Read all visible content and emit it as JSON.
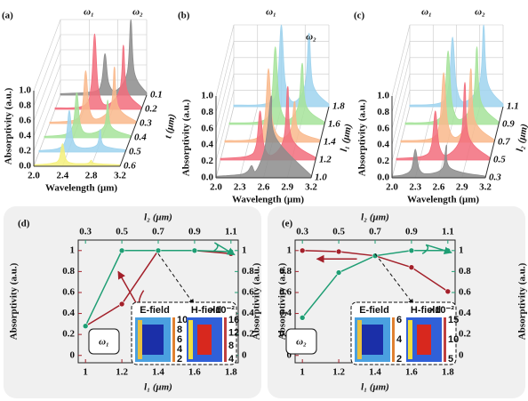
{
  "chart_data": [
    {
      "type": "waterfall",
      "label": "(a)",
      "xlabel": "Wavelength (μm)",
      "ylabel": "Absorptivity (a.u.)",
      "zlabel": "t (μm)",
      "annotations": [
        "ω₁",
        "ω₂"
      ],
      "xlim": [
        2.0,
        3.2
      ],
      "xticks": [
        {
          "value": 2,
          "label": "2.0"
        },
        2.4,
        2.8,
        3.2
      ],
      "ylim": [
        0,
        1
      ],
      "yticks": [
        {
          "value": 0,
          "label": "0.0"
        },
        0.2,
        0.4,
        0.6,
        0.8,
        {
          "value": 1,
          "label": "1.0"
        }
      ],
      "series": [
        {
          "name": "0.1",
          "color": "#8c8c8c",
          "x": [
            2.0,
            2.47,
            2.57,
            2.62,
            2.67,
            2.77,
            2.93,
            2.98,
            3.03,
            3.2
          ],
          "values": [
            0.02,
            0.05,
            0.17,
            0.55,
            0.17,
            0.06,
            0.3,
            1.0,
            0.3,
            0.03
          ]
        },
        {
          "name": "0.2",
          "color": "#f26d7d",
          "x": [
            2.0,
            2.4,
            2.5,
            2.55,
            2.6,
            2.7,
            2.9,
            2.95,
            3.0,
            3.2
          ],
          "values": [
            0.02,
            0.05,
            0.3,
            1.0,
            0.3,
            0.06,
            0.26,
            0.85,
            0.26,
            0.03
          ]
        },
        {
          "name": "0.3",
          "color": "#f9b98c",
          "x": [
            2.0,
            2.35,
            2.45,
            2.5,
            2.55,
            2.65,
            2.85,
            2.9,
            2.95,
            3.2
          ],
          "values": [
            0.02,
            0.05,
            0.21,
            0.7,
            0.21,
            0.06,
            0.23,
            0.75,
            0.23,
            0.03
          ]
        },
        {
          "name": "0.4",
          "color": "#a6e39a",
          "x": [
            2.0,
            2.3,
            2.4,
            2.45,
            2.5,
            2.6,
            2.83,
            2.88,
            2.93,
            3.2
          ],
          "values": [
            0.02,
            0.05,
            0.18,
            0.6,
            0.18,
            0.06,
            0.15,
            0.5,
            0.15,
            0.03
          ]
        },
        {
          "name": "0.5",
          "color": "#9fd3ee",
          "x": [
            2.0,
            2.27,
            2.37,
            2.42,
            2.47,
            2.57,
            2.8,
            2.85,
            2.9,
            3.2
          ],
          "values": [
            0.02,
            0.05,
            0.17,
            0.55,
            0.17,
            0.06,
            0.09,
            0.3,
            0.09,
            0.03
          ]
        },
        {
          "name": "0.6",
          "color": "#f5f07a",
          "x": [
            2.0,
            2.25,
            2.35,
            2.4,
            2.45,
            2.55,
            2.75,
            2.8,
            2.85,
            3.2
          ],
          "values": [
            0.02,
            0.04,
            0.09,
            0.3,
            0.09,
            0.04,
            0.04,
            0.08,
            0.04,
            0.02
          ]
        }
      ]
    },
    {
      "type": "waterfall",
      "label": "(b)",
      "xlabel": "Wavelength (μm)",
      "ylabel": "Absorptivity (a.u.)",
      "zlabel": "l₁ (μm)",
      "annotations": [
        "ω₁",
        "ω₂"
      ],
      "xlim": [
        2.0,
        3.2
      ],
      "xticks": [
        {
          "value": 2,
          "label": "2.0"
        },
        2.3,
        2.6,
        2.9,
        3.2
      ],
      "ylim": [
        0,
        1
      ],
      "yticks": [
        {
          "value": 0,
          "label": "0.0"
        },
        0.2,
        0.4,
        0.6,
        0.8,
        {
          "value": 1,
          "label": "1.0"
        }
      ],
      "series": [
        {
          "name": "1.8",
          "color": "#9fd3ee",
          "x": [
            2.0,
            2.45,
            2.55,
            2.6,
            2.65,
            2.75,
            2.9,
            2.95,
            3.0,
            3.2
          ],
          "values": [
            0.02,
            0.05,
            0.3,
            1.0,
            0.3,
            0.06,
            0.27,
            0.9,
            0.27,
            0.03
          ]
        },
        {
          "name": "1.6",
          "color": "#a6e39a",
          "x": [
            2.0,
            2.43,
            2.53,
            2.58,
            2.63,
            2.73,
            2.87,
            2.92,
            2.97,
            3.2
          ],
          "values": [
            0.02,
            0.05,
            0.29,
            0.95,
            0.29,
            0.06,
            0.23,
            0.75,
            0.23,
            0.03
          ]
        },
        {
          "name": "1.4",
          "color": "#f9b98c",
          "x": [
            2.0,
            2.4,
            2.5,
            2.55,
            2.6,
            2.7,
            2.83,
            2.88,
            2.93,
            3.2
          ],
          "values": [
            0.02,
            0.05,
            0.27,
            0.9,
            0.27,
            0.06,
            0.15,
            0.5,
            0.15,
            0.03
          ]
        },
        {
          "name": "1.2",
          "color": "#f26d7d",
          "x": [
            2.0,
            2.35,
            2.45,
            2.5,
            2.55,
            2.65,
            2.8,
            2.85,
            2.9,
            3.2
          ],
          "values": [
            0.02,
            0.05,
            0.18,
            0.6,
            0.18,
            0.06,
            0.27,
            0.9,
            0.27,
            0.03
          ]
        },
        {
          "name": "1.0",
          "color": "#8c8c8c",
          "x": [
            2.0,
            2.3,
            2.4,
            2.45,
            2.5,
            2.6,
            2.65,
            2.7,
            2.75,
            3.2
          ],
          "values": [
            0.02,
            0.04,
            0.08,
            0.15,
            0.08,
            0.3,
            0.6,
            1.0,
            0.5,
            0.03
          ]
        }
      ]
    },
    {
      "type": "waterfall",
      "label": "(c)",
      "xlabel": "Wavelength (μm)",
      "ylabel": "Absorptivity (a.u.)",
      "zlabel": "l₂ (μm)",
      "annotations": [
        "ω₁",
        "ω₂"
      ],
      "xlim": [
        2.0,
        3.2
      ],
      "xticks": [
        {
          "value": 2,
          "label": "2.0"
        },
        2.3,
        2.6,
        2.9,
        3.2
      ],
      "ylim": [
        0,
        1
      ],
      "yticks": [
        {
          "value": 0,
          "label": "0.0"
        },
        0.2,
        0.4,
        0.6,
        0.8,
        {
          "value": 1,
          "label": "1.0"
        }
      ],
      "series": [
        {
          "name": "1.1",
          "color": "#9fd3ee",
          "x": [
            2.0,
            2.4,
            2.5,
            2.55,
            2.6,
            2.7,
            2.9,
            2.95,
            3.0,
            3.2
          ],
          "values": [
            0.02,
            0.05,
            0.26,
            0.85,
            0.26,
            0.06,
            0.3,
            1.0,
            0.3,
            0.03
          ]
        },
        {
          "name": "0.9",
          "color": "#a6e39a",
          "x": [
            2.0,
            2.4,
            2.5,
            2.55,
            2.6,
            2.7,
            2.87,
            2.92,
            2.97,
            3.2
          ],
          "values": [
            0.02,
            0.05,
            0.27,
            0.9,
            0.27,
            0.06,
            0.29,
            0.95,
            0.29,
            0.03
          ]
        },
        {
          "name": "0.7",
          "color": "#f9b98c",
          "x": [
            2.0,
            2.4,
            2.5,
            2.55,
            2.6,
            2.7,
            2.85,
            2.9,
            2.95,
            3.2
          ],
          "values": [
            0.02,
            0.05,
            0.26,
            0.85,
            0.26,
            0.06,
            0.27,
            0.9,
            0.27,
            0.03
          ]
        },
        {
          "name": "0.5",
          "color": "#f26d7d",
          "x": [
            2.0,
            2.35,
            2.45,
            2.5,
            2.55,
            2.65,
            2.83,
            2.88,
            2.93,
            3.2
          ],
          "values": [
            0.02,
            0.05,
            0.18,
            0.6,
            0.18,
            0.06,
            0.29,
            0.95,
            0.29,
            0.03
          ]
        },
        {
          "name": "0.3",
          "color": "#8c8c8c",
          "x": [
            2.0,
            2.15,
            2.25,
            2.3,
            2.35,
            2.45,
            2.65,
            2.7,
            2.75,
            3.2
          ],
          "values": [
            0.02,
            0.04,
            0.11,
            0.35,
            0.11,
            0.05,
            0.12,
            0.4,
            0.12,
            0.02
          ]
        }
      ]
    },
    {
      "type": "line",
      "label": "(d)",
      "xlabel": "l₁ (μm)",
      "x2label": "l₂ (μm)",
      "ylabel": "Absorptivity (a.u.)",
      "y2label": "Absorptivity (a.u.)",
      "annotations": [
        "ω₁"
      ],
      "inset": {
        "labels": [
          "E-field",
          "H-field"
        ],
        "scales": [
          [
            "10",
            "8",
            "6",
            "4",
            "2"
          ],
          [
            "16",
            "12",
            "8",
            "4"
          ]
        ],
        "exponent": "×10⁻²"
      },
      "xlim": [
        0.96,
        1.84
      ],
      "xticks": [
        1,
        1.2,
        1.4,
        1.6,
        1.8
      ],
      "x2lim": [
        0.26,
        1.14
      ],
      "x2ticks": [
        0.3,
        0.5,
        0.7,
        0.9,
        1.1
      ],
      "ylim": [
        -0.07,
        1.1
      ],
      "yticks": [
        0,
        0.2,
        0.4,
        0.6,
        0.8,
        1
      ],
      "y2lim": [
        -0.07,
        1.1
      ],
      "y2ticks": [
        0,
        0.2,
        0.4,
        0.6,
        0.8,
        1
      ],
      "series": [
        {
          "color": "#a3202a",
          "axis": "y",
          "xaxis": "x",
          "x": [
            1,
            1.2,
            1.4,
            1.6,
            1.8
          ],
          "values": [
            0.28,
            0.49,
            1.0,
            1.0,
            0.97
          ]
        },
        {
          "color": "#1f9e74",
          "axis": "y2",
          "xaxis": "x2",
          "x": [
            0.3,
            0.5,
            0.7,
            0.9,
            1.1
          ],
          "values": [
            0.28,
            1.0,
            1.0,
            1.0,
            0.99
          ]
        }
      ]
    },
    {
      "type": "line",
      "label": "(e)",
      "xlabel": "l₁ (μm)",
      "x2label": "l₂ (μm)",
      "ylabel": "Absorptivity (a.u.)",
      "y2label": "Absorptivity (a.u.)",
      "annotations": [
        "ω₂"
      ],
      "inset": {
        "labels": [
          "E-field",
          "H-field"
        ],
        "scales": [
          [
            "6",
            "4",
            "2"
          ],
          [
            "15",
            "10",
            "5"
          ]
        ],
        "exponent": "×10⁻²"
      },
      "xlim": [
        0.96,
        1.84
      ],
      "xticks": [
        1,
        1.2,
        1.4,
        1.6,
        1.8
      ],
      "x2lim": [
        0.26,
        1.14
      ],
      "x2ticks": [
        0.3,
        0.5,
        0.7,
        0.9,
        1.1
      ],
      "ylim": [
        -0.07,
        1.1
      ],
      "yticks": [
        0,
        0.2,
        0.4,
        0.6,
        0.8,
        1
      ],
      "y2lim": [
        -0.07,
        1.1
      ],
      "y2ticks": [
        0,
        0.2,
        0.4,
        0.6,
        0.8,
        1
      ],
      "series": [
        {
          "color": "#a3202a",
          "axis": "y",
          "xaxis": "x",
          "x": [
            1,
            1.2,
            1.4,
            1.6,
            1.8
          ],
          "values": [
            1.0,
            0.99,
            0.95,
            0.84,
            0.61
          ]
        },
        {
          "color": "#1f9e74",
          "axis": "y2",
          "xaxis": "x2",
          "x": [
            0.3,
            0.5,
            0.7,
            0.9,
            1.1
          ],
          "values": [
            0.36,
            0.79,
            0.95,
            1.0,
            1.0
          ]
        }
      ]
    }
  ]
}
